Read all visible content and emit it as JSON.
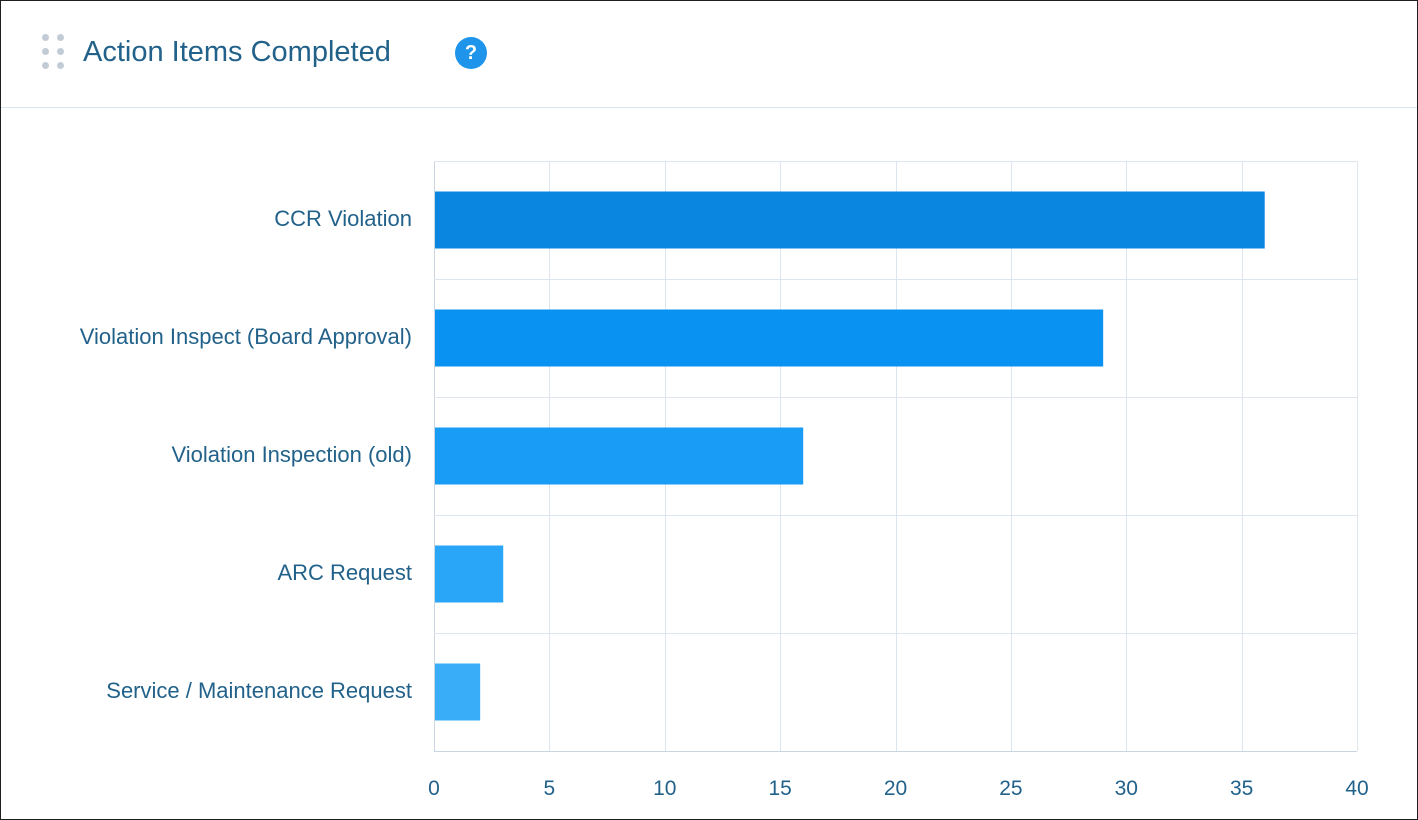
{
  "header": {
    "title": "Action Items Completed",
    "help_icon": "question-circle-icon",
    "drag_icon": "drag-handle-icon",
    "help_glyph": "?"
  },
  "chart_data": {
    "type": "bar",
    "orientation": "horizontal",
    "title": "Action Items Completed",
    "categories": [
      "CCR Violation",
      "Violation Inspect (Board Approval)",
      "Violation Inspection (old)",
      "ARC Request",
      "Service / Maintenance Request"
    ],
    "values": [
      36,
      29,
      16,
      3,
      2
    ],
    "colors": [
      "#0a86e0",
      "#0a92f2",
      "#199cf6",
      "#2aa6f8",
      "#3aadf9"
    ],
    "xlim": [
      0,
      40
    ],
    "xticks": [
      0,
      5,
      10,
      15,
      20,
      25,
      30,
      35,
      40
    ],
    "grid": true,
    "legend": "none"
  }
}
